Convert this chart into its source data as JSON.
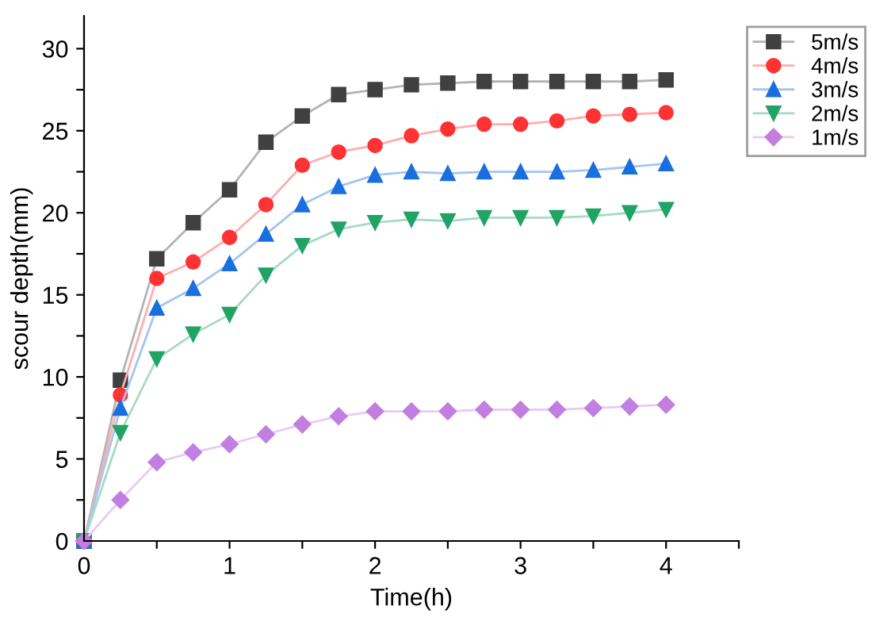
{
  "chart_data": {
    "type": "line",
    "xlabel": "Time(h)",
    "ylabel": "scour depth(mm)",
    "x": [
      0,
      0.25,
      0.5,
      0.75,
      1,
      1.25,
      1.5,
      1.75,
      2,
      2.25,
      2.5,
      2.75,
      3,
      3.25,
      3.5,
      3.75,
      4
    ],
    "xlim": [
      0,
      4.5
    ],
    "xticks": [
      0,
      {
        "value": 0.5,
        "label": null
      },
      1,
      {
        "value": 1.5,
        "label": null
      },
      2,
      {
        "value": 2.5,
        "label": null
      },
      3,
      {
        "value": 3.5,
        "label": null
      },
      4,
      {
        "value": 4.5,
        "label": null
      }
    ],
    "ylim": [
      0,
      32
    ],
    "yticks": [
      0,
      {
        "value": 2.5,
        "label": null
      },
      5,
      {
        "value": 7.5,
        "label": null
      },
      10,
      {
        "value": 12.5,
        "label": null
      },
      15,
      {
        "value": 17.5,
        "label": null
      },
      20,
      {
        "value": 22.5,
        "label": null
      },
      25,
      {
        "value": 27.5,
        "label": null
      },
      30
    ],
    "grid": false,
    "legend": "top right",
    "line_style": "solid",
    "series": [
      {
        "name": "5m/s",
        "color": "#404040",
        "marker": "square",
        "values": [
          0,
          9.8,
          17.2,
          19.4,
          21.4,
          24.3,
          25.9,
          27.2,
          27.5,
          27.8,
          27.9,
          28.0,
          28.0,
          28.0,
          28.0,
          28.0,
          28.1
        ]
      },
      {
        "name": "4m/s",
        "color": "#ff3333",
        "marker": "circle",
        "values": [
          0,
          8.9,
          16.0,
          17.0,
          18.5,
          20.5,
          22.9,
          23.7,
          24.1,
          24.7,
          25.1,
          25.4,
          25.4,
          25.6,
          25.9,
          26.0,
          26.1
        ]
      },
      {
        "name": "3m/s",
        "color": "#1a6fdf",
        "marker": "triangle",
        "values": [
          0,
          8.1,
          14.2,
          15.4,
          16.9,
          18.7,
          20.5,
          21.6,
          22.3,
          22.5,
          22.4,
          22.5,
          22.5,
          22.5,
          22.6,
          22.8,
          23.0
        ]
      },
      {
        "name": "2m/s",
        "color": "#21a366",
        "marker": "triangle_down",
        "values": [
          0,
          6.6,
          11.1,
          12.6,
          13.8,
          16.2,
          18.0,
          19.0,
          19.4,
          19.6,
          19.5,
          19.7,
          19.7,
          19.7,
          19.8,
          20.0,
          20.2
        ]
      },
      {
        "name": "1m/s",
        "color": "#c27ee0",
        "marker": "diamond",
        "values": [
          0,
          2.5,
          4.8,
          5.4,
          5.9,
          6.5,
          7.1,
          7.6,
          7.9,
          7.9,
          7.9,
          8.0,
          8.0,
          8.0,
          8.1,
          8.2,
          8.3
        ]
      }
    ]
  }
}
